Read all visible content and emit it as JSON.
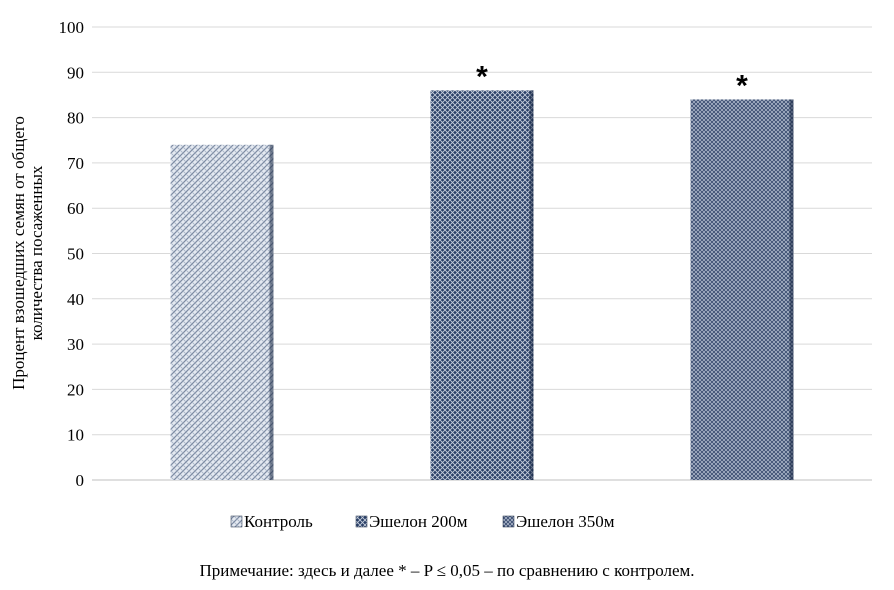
{
  "chart_data": {
    "type": "bar",
    "categories": [
      "Контроль",
      "Эшелон 200м",
      "Эшелон 350м"
    ],
    "values": [
      74,
      86,
      84
    ],
    "significance": [
      "",
      "*",
      "*"
    ],
    "ylabel_lines": [
      "Процент взошедших семян от общего",
      "количества посаженных"
    ],
    "ylim": [
      0,
      100
    ],
    "yticks": [
      0,
      10,
      20,
      30,
      40,
      50,
      60,
      70,
      80,
      90,
      100
    ],
    "grid": true,
    "legend_position": "bottom",
    "colors": [
      "#b8c4d6",
      "#2a3f66",
      "#3a4c70"
    ]
  },
  "note": "Примечание: здесь и далее * – P ≤ 0,05 – по сравнению с контролем."
}
